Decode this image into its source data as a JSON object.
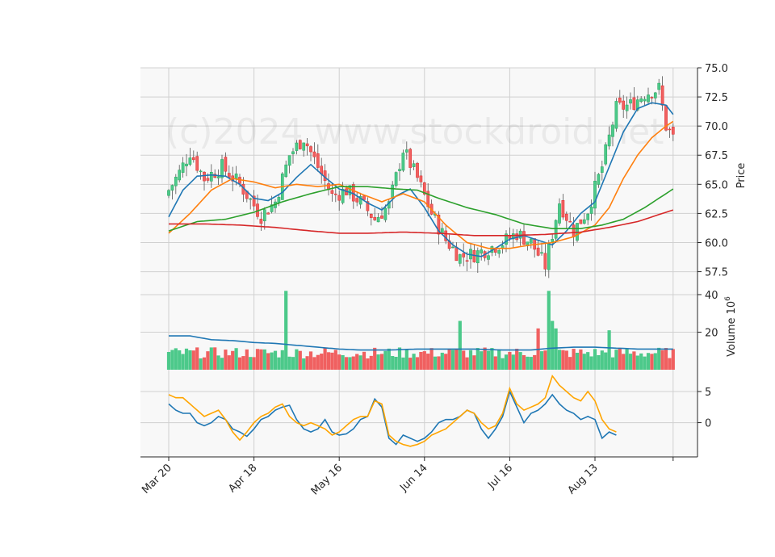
{
  "watermark": "(c)2024 www.stockdroid.net",
  "colors": {
    "up": "#26a65b",
    "up_fill": "#4cc98a",
    "down": "#e02b2b",
    "down_fill": "#f06060",
    "ma1": "#1f77b4",
    "ma2": "#ff7f0e",
    "ma3": "#2ca02c",
    "ma4": "#d62728",
    "volume_ma": "#1f77b4",
    "osc_a": "#1f77b4",
    "osc_b": "#ffa500",
    "panel_bg": "#f8f8f8",
    "grid": "#d0d0d0"
  },
  "chart_data": {
    "type": "candlestick",
    "x_tick_labels": [
      "Mar 20",
      "Apr 18",
      "May 16",
      "Jun 14",
      "Jul 16",
      "Aug 13"
    ],
    "price_panel": {
      "ylabel": "Price",
      "ylim": [
        56.5,
        75.0
      ],
      "y_ticks": [
        57.5,
        60.0,
        62.5,
        65.0,
        67.5,
        70.0,
        72.5,
        75.0
      ],
      "y_tick_labels": [
        "57.5",
        "60.0",
        "62.5",
        "65.0",
        "67.5",
        "70.0",
        "72.5",
        "75.0"
      ],
      "close_anchors": [
        [
          0,
          64.5
        ],
        [
          3,
          66.0
        ],
        [
          6,
          67.8
        ],
        [
          10,
          65.5
        ],
        [
          15,
          66.5
        ],
        [
          20,
          65.0
        ],
        [
          26,
          62.3
        ],
        [
          30,
          63.5
        ],
        [
          34,
          67.5
        ],
        [
          38,
          69.0
        ],
        [
          42,
          66.5
        ],
        [
          46,
          64.0
        ],
        [
          50,
          64.5
        ],
        [
          54,
          63.5
        ],
        [
          58,
          62.0
        ],
        [
          62,
          63.2
        ],
        [
          66,
          68.0
        ],
        [
          70,
          65.5
        ],
        [
          74,
          62.5
        ],
        [
          78,
          60.2
        ],
        [
          82,
          58.8
        ],
        [
          86,
          59.0
        ],
        [
          90,
          59.5
        ],
        [
          94,
          60.0
        ],
        [
          98,
          60.8
        ],
        [
          102,
          60.0
        ],
        [
          106,
          58.0
        ],
        [
          110,
          63.5
        ],
        [
          114,
          61.0
        ],
        [
          118,
          62.8
        ],
        [
          122,
          66.5
        ],
        [
          126,
          71.5
        ],
        [
          130,
          71.8
        ],
        [
          134,
          72.8
        ],
        [
          138,
          73.2
        ],
        [
          140,
          70.0
        ],
        [
          142,
          69.0
        ]
      ],
      "moving_averages": [
        {
          "color_key": "ma1",
          "points": [
            [
              0,
              62.2
            ],
            [
              4,
              64.5
            ],
            [
              8,
              65.7
            ],
            [
              12,
              65.8
            ],
            [
              16,
              65.7
            ],
            [
              20,
              65.0
            ],
            [
              24,
              63.8
            ],
            [
              28,
              63.6
            ],
            [
              32,
              64.3
            ],
            [
              36,
              65.6
            ],
            [
              40,
              66.7
            ],
            [
              44,
              65.6
            ],
            [
              48,
              64.6
            ],
            [
              52,
              64.2
            ],
            [
              56,
              63.4
            ],
            [
              60,
              62.8
            ],
            [
              64,
              64.0
            ],
            [
              68,
              64.6
            ],
            [
              72,
              63.0
            ],
            [
              76,
              61.0
            ],
            [
              80,
              59.8
            ],
            [
              84,
              59.0
            ],
            [
              88,
              58.8
            ],
            [
              92,
              59.5
            ],
            [
              96,
              60.3
            ],
            [
              100,
              60.6
            ],
            [
              104,
              60.2
            ],
            [
              108,
              59.8
            ],
            [
              112,
              61.0
            ],
            [
              116,
              62.5
            ],
            [
              120,
              63.5
            ],
            [
              124,
              66.5
            ],
            [
              128,
              69.5
            ],
            [
              132,
              71.5
            ],
            [
              136,
              72.0
            ],
            [
              140,
              71.8
            ],
            [
              142,
              71.0
            ]
          ]
        },
        {
          "color_key": "ma2",
          "points": [
            [
              0,
              60.8
            ],
            [
              6,
              62.5
            ],
            [
              12,
              64.5
            ],
            [
              18,
              65.5
            ],
            [
              24,
              65.2
            ],
            [
              30,
              64.7
            ],
            [
              36,
              65.0
            ],
            [
              42,
              64.8
            ],
            [
              48,
              65.0
            ],
            [
              54,
              64.2
            ],
            [
              60,
              63.5
            ],
            [
              66,
              64.2
            ],
            [
              72,
              63.5
            ],
            [
              78,
              61.5
            ],
            [
              84,
              60.0
            ],
            [
              90,
              59.5
            ],
            [
              96,
              59.5
            ],
            [
              102,
              59.8
            ],
            [
              108,
              60.0
            ],
            [
              114,
              60.5
            ],
            [
              120,
              61.5
            ],
            [
              124,
              63.0
            ],
            [
              128,
              65.5
            ],
            [
              132,
              67.5
            ],
            [
              136,
              69.0
            ],
            [
              140,
              70.0
            ],
            [
              142,
              70.4
            ]
          ]
        },
        {
          "color_key": "ma3",
          "points": [
            [
              0,
              61.0
            ],
            [
              8,
              61.8
            ],
            [
              16,
              62.0
            ],
            [
              24,
              62.6
            ],
            [
              32,
              63.5
            ],
            [
              40,
              64.2
            ],
            [
              48,
              64.8
            ],
            [
              56,
              64.8
            ],
            [
              64,
              64.6
            ],
            [
              70,
              64.5
            ],
            [
              76,
              63.8
            ],
            [
              84,
              63.0
            ],
            [
              92,
              62.4
            ],
            [
              100,
              61.6
            ],
            [
              108,
              61.2
            ],
            [
              116,
              61.2
            ],
            [
              122,
              61.5
            ],
            [
              128,
              62.0
            ],
            [
              134,
              63.0
            ],
            [
              138,
              63.8
            ],
            [
              142,
              64.6
            ]
          ]
        },
        {
          "color_key": "ma4",
          "points": [
            [
              0,
              61.6
            ],
            [
              10,
              61.6
            ],
            [
              20,
              61.5
            ],
            [
              30,
              61.3
            ],
            [
              40,
              61.0
            ],
            [
              48,
              60.8
            ],
            [
              56,
              60.8
            ],
            [
              66,
              60.9
            ],
            [
              76,
              60.8
            ],
            [
              86,
              60.6
            ],
            [
              96,
              60.6
            ],
            [
              106,
              60.7
            ],
            [
              116,
              60.9
            ],
            [
              124,
              61.3
            ],
            [
              132,
              61.8
            ],
            [
              138,
              62.4
            ],
            [
              142,
              62.8
            ]
          ]
        }
      ]
    },
    "volume_panel": {
      "ylabel": "Volume $10^6$",
      "ylabel_text": "Volume",
      "ylabel_exp": "10",
      "ylabel_sup": "6",
      "ylim": [
        0,
        46
      ],
      "y_ticks": [
        20,
        40
      ],
      "y_tick_labels": [
        "20",
        "40"
      ],
      "spikes": [
        [
          33,
          42
        ],
        [
          82,
          26
        ],
        [
          104,
          22
        ],
        [
          107,
          42
        ],
        [
          108,
          26
        ],
        [
          109,
          22
        ],
        [
          124,
          21
        ]
      ],
      "moving_average": [
        [
          0,
          18
        ],
        [
          6,
          18
        ],
        [
          12,
          16
        ],
        [
          18,
          15.5
        ],
        [
          24,
          14.5
        ],
        [
          30,
          14
        ],
        [
          36,
          13
        ],
        [
          42,
          12
        ],
        [
          48,
          11
        ],
        [
          54,
          10.5
        ],
        [
          62,
          10.5
        ],
        [
          70,
          11
        ],
        [
          78,
          11
        ],
        [
          86,
          11
        ],
        [
          94,
          10.5
        ],
        [
          102,
          10.5
        ],
        [
          108,
          11.5
        ],
        [
          114,
          12
        ],
        [
          120,
          12
        ],
        [
          126,
          11.5
        ],
        [
          132,
          11
        ],
        [
          138,
          11
        ],
        [
          142,
          11
        ]
      ]
    },
    "oscillator_panel": {
      "ylim": [
        -5.5,
        8.5
      ],
      "y_ticks": [
        0,
        5
      ],
      "y_tick_labels": [
        "0",
        "5"
      ],
      "series_a": [
        [
          0,
          3
        ],
        [
          2,
          2
        ],
        [
          4,
          1.5
        ],
        [
          6,
          1.5
        ],
        [
          8,
          0
        ],
        [
          10,
          -0.5
        ],
        [
          12,
          0
        ],
        [
          14,
          1
        ],
        [
          16,
          0.5
        ],
        [
          18,
          -1
        ],
        [
          20,
          -1.5
        ],
        [
          22,
          -2.2
        ],
        [
          24,
          -1
        ],
        [
          26,
          0.5
        ],
        [
          28,
          1
        ],
        [
          30,
          2
        ],
        [
          32,
          2.5
        ],
        [
          34,
          2.8
        ],
        [
          36,
          0.5
        ],
        [
          38,
          -1
        ],
        [
          40,
          -1.5
        ],
        [
          42,
          -1
        ],
        [
          44,
          0.5
        ],
        [
          46,
          -1.5
        ],
        [
          48,
          -2
        ],
        [
          50,
          -1.8
        ],
        [
          52,
          -1
        ],
        [
          54,
          0.5
        ],
        [
          56,
          1
        ],
        [
          58,
          3.8
        ],
        [
          60,
          2.5
        ],
        [
          62,
          -2.5
        ],
        [
          64,
          -3.5
        ],
        [
          66,
          -2
        ],
        [
          68,
          -2.5
        ],
        [
          70,
          -3
        ],
        [
          72,
          -2.5
        ],
        [
          74,
          -1.5
        ],
        [
          76,
          0
        ],
        [
          78,
          0.5
        ],
        [
          80,
          0.5
        ],
        [
          82,
          1
        ],
        [
          84,
          2
        ],
        [
          86,
          1.5
        ],
        [
          88,
          -1
        ],
        [
          90,
          -2.5
        ],
        [
          92,
          -1
        ],
        [
          94,
          1
        ],
        [
          96,
          5
        ],
        [
          98,
          2.5
        ],
        [
          100,
          0
        ],
        [
          102,
          1.5
        ],
        [
          104,
          2
        ],
        [
          106,
          3
        ],
        [
          108,
          4.5
        ],
        [
          110,
          3
        ],
        [
          112,
          2
        ],
        [
          114,
          1.5
        ],
        [
          116,
          0.5
        ],
        [
          118,
          1
        ],
        [
          120,
          0.5
        ],
        [
          122,
          -2.5
        ],
        [
          124,
          -1.5
        ],
        [
          126,
          -2
        ]
      ],
      "series_b": [
        [
          0,
          4.5
        ],
        [
          2,
          4
        ],
        [
          4,
          4
        ],
        [
          6,
          3
        ],
        [
          8,
          2
        ],
        [
          10,
          1
        ],
        [
          12,
          1.5
        ],
        [
          14,
          2
        ],
        [
          16,
          0.5
        ],
        [
          18,
          -1.5
        ],
        [
          20,
          -2.8
        ],
        [
          22,
          -1.5
        ],
        [
          24,
          0
        ],
        [
          26,
          1
        ],
        [
          28,
          1.5
        ],
        [
          30,
          2.5
        ],
        [
          32,
          3
        ],
        [
          34,
          1
        ],
        [
          36,
          0
        ],
        [
          38,
          -0.5
        ],
        [
          40,
          0
        ],
        [
          42,
          -0.5
        ],
        [
          44,
          -1
        ],
        [
          46,
          -2
        ],
        [
          48,
          -1.5
        ],
        [
          50,
          -0.5
        ],
        [
          52,
          0.5
        ],
        [
          54,
          1
        ],
        [
          56,
          1
        ],
        [
          58,
          3.5
        ],
        [
          60,
          3
        ],
        [
          62,
          -2
        ],
        [
          64,
          -3
        ],
        [
          66,
          -3.5
        ],
        [
          68,
          -3.8
        ],
        [
          70,
          -3.5
        ],
        [
          72,
          -3
        ],
        [
          74,
          -2
        ],
        [
          76,
          -1.5
        ],
        [
          78,
          -1
        ],
        [
          80,
          0
        ],
        [
          82,
          1
        ],
        [
          84,
          2
        ],
        [
          86,
          1.5
        ],
        [
          88,
          0
        ],
        [
          90,
          -1
        ],
        [
          92,
          -0.5
        ],
        [
          94,
          1.5
        ],
        [
          96,
          5.5
        ],
        [
          98,
          3
        ],
        [
          100,
          2
        ],
        [
          102,
          2.5
        ],
        [
          104,
          3
        ],
        [
          106,
          4
        ],
        [
          108,
          7.5
        ],
        [
          110,
          6
        ],
        [
          112,
          5
        ],
        [
          114,
          4
        ],
        [
          116,
          3.5
        ],
        [
          118,
          5
        ],
        [
          120,
          3.5
        ],
        [
          122,
          0.5
        ],
        [
          124,
          -1
        ],
        [
          126,
          -1.5
        ]
      ]
    }
  }
}
